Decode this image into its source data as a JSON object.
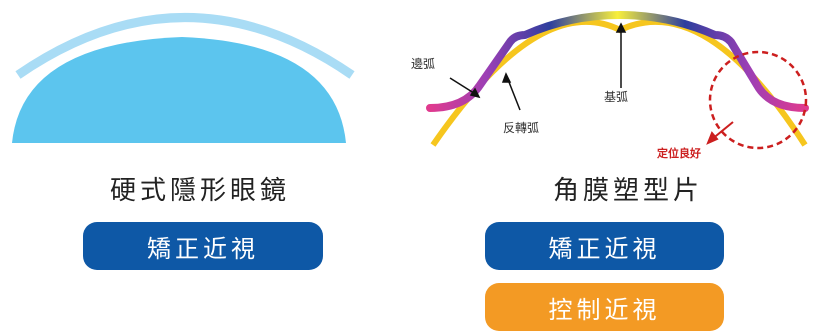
{
  "left": {
    "title": "硬式隱形眼鏡",
    "buttons": [
      {
        "label": "矯正近視",
        "color": "#0e58a6"
      }
    ]
  },
  "right": {
    "title": "角膜塑型片",
    "labels": {
      "edge_curve": "邊弧",
      "reverse_curve": "反轉弧",
      "base_curve": "基弧",
      "positioning": "定位良好"
    },
    "buttons": [
      {
        "label": "矯正近視",
        "color": "#0e58a6"
      },
      {
        "label": "控制近視",
        "color": "#f39a24"
      }
    ]
  },
  "colors": {
    "cornea": "#5cc5ee",
    "rgp_lens": "#a9dcf5",
    "ortho_lens_curve": "#f6c61e",
    "highlight_circle": "#cc1f1f"
  }
}
